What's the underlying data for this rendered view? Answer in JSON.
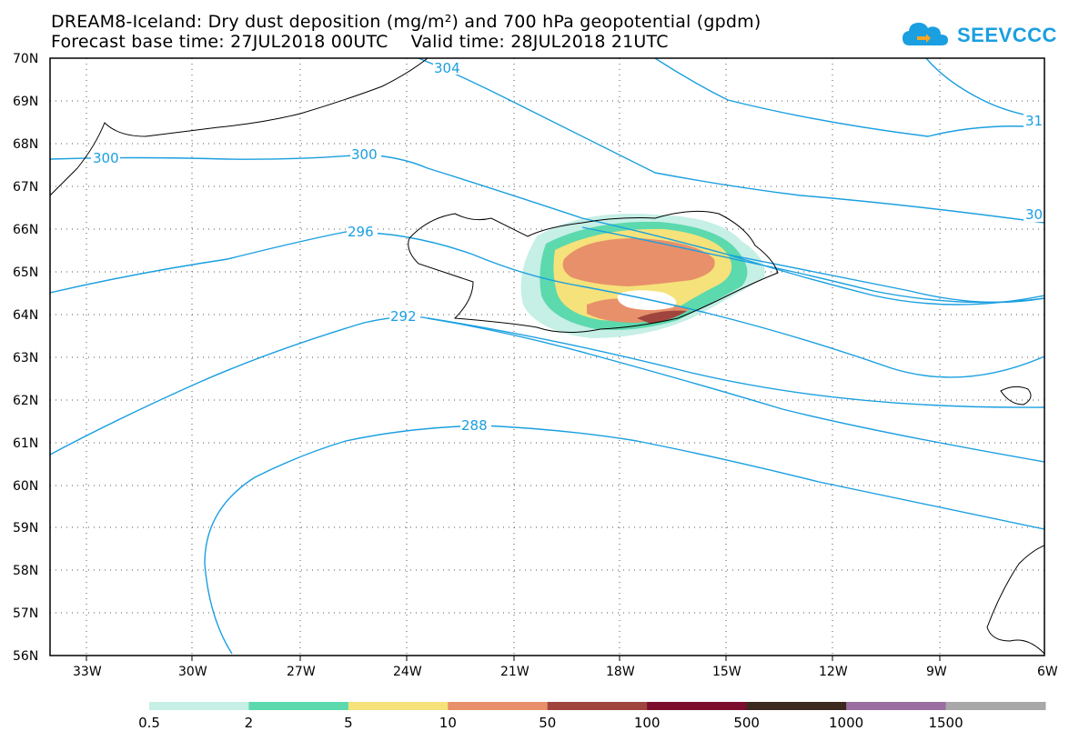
{
  "header": {
    "title_line1": "DREAM8-Iceland: Dry dust deposition (mg/m²) and 700 hPa geopotential (gpdm)",
    "title_line2": "Forecast base time: 27JUL2018 00UTC    Valid time: 28JUL2018 21UTC"
  },
  "brand": {
    "name": "SEEVCCC",
    "icon": "cloud-logo-icon",
    "color": "#1a9fe0"
  },
  "map": {
    "lat_labels": [
      "70N",
      "69N",
      "68N",
      "67N",
      "66N",
      "65N",
      "64N",
      "63N",
      "62N",
      "61N",
      "60N",
      "59N",
      "58N",
      "57N",
      "56N"
    ],
    "lon_labels": [
      "33W",
      "30W",
      "27W",
      "24W",
      "21W",
      "18W",
      "15W",
      "12W",
      "9W",
      "6W"
    ],
    "contours": [
      {
        "level": "288"
      },
      {
        "level": "292"
      },
      {
        "level": "296"
      },
      {
        "level": "300"
      },
      {
        "level": "304"
      },
      {
        "level": "30"
      },
      {
        "level": "31"
      }
    ],
    "contour_color": "#1a9fe0",
    "grid": "dotted"
  },
  "colorbar": {
    "labels": [
      "0.5",
      "2",
      "5",
      "10",
      "50",
      "100",
      "500",
      "1000",
      "1500"
    ],
    "colors": [
      "#c6efe6",
      "#5cd9ad",
      "#f5e27a",
      "#e8906a",
      "#a0453d",
      "#7a0e2c",
      "#3c2a1e",
      "#9a6ea0",
      "#a8a8a8"
    ]
  }
}
